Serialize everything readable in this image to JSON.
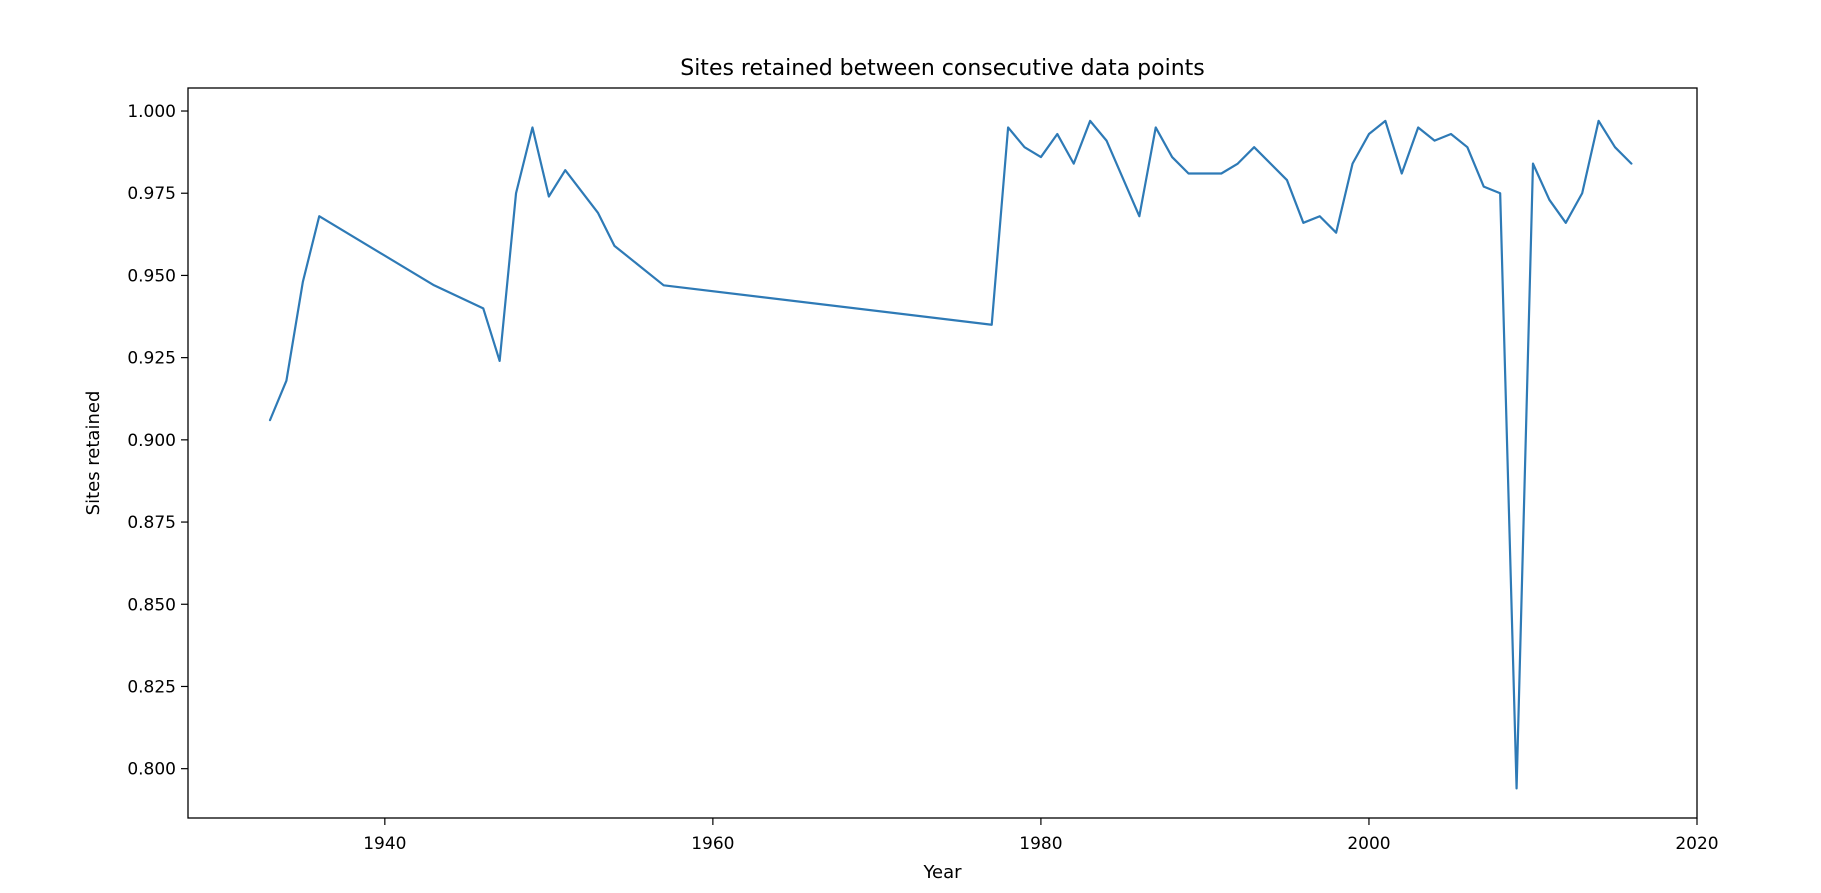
{
  "chart_data": {
    "type": "line",
    "title": "Sites retained between consecutive data points",
    "xlabel": "Year",
    "ylabel": "Sites retained",
    "xlim": [
      1928,
      2020
    ],
    "ylim": [
      0.785,
      1.007
    ],
    "xticks": [
      1940,
      1960,
      1980,
      2000,
      2020
    ],
    "yticks": [
      0.8,
      0.825,
      0.85,
      0.875,
      0.9,
      0.925,
      0.95,
      0.975,
      1.0
    ],
    "grid": false,
    "series": [
      {
        "color": "#2e7ab6",
        "x": [
          1933,
          1934,
          1935,
          1936,
          1943,
          1946,
          1947,
          1948,
          1949,
          1950,
          1951,
          1953,
          1954,
          1957,
          1977,
          1978,
          1979,
          1980,
          1981,
          1982,
          1983,
          1984,
          1986,
          1987,
          1988,
          1989,
          1991,
          1992,
          1993,
          1995,
          1996,
          1997,
          1998,
          1999,
          2000,
          2001,
          2002,
          2003,
          2004,
          2005,
          2006,
          2007,
          2008,
          2009,
          2010,
          2011,
          2012,
          2013,
          2014,
          2015,
          2016
        ],
        "y": [
          0.906,
          0.918,
          0.948,
          0.968,
          0.947,
          0.94,
          0.924,
          0.975,
          0.995,
          0.974,
          0.982,
          0.969,
          0.959,
          0.947,
          0.935,
          0.995,
          0.989,
          0.986,
          0.993,
          0.984,
          0.997,
          0.991,
          0.968,
          0.995,
          0.986,
          0.981,
          0.981,
          0.984,
          0.989,
          0.979,
          0.966,
          0.968,
          0.963,
          0.984,
          0.993,
          0.997,
          0.981,
          0.995,
          0.991,
          0.993,
          0.989,
          0.977,
          0.975,
          0.794,
          0.984,
          0.973,
          0.966,
          0.975,
          0.997,
          0.989,
          0.984
        ]
      }
    ]
  }
}
